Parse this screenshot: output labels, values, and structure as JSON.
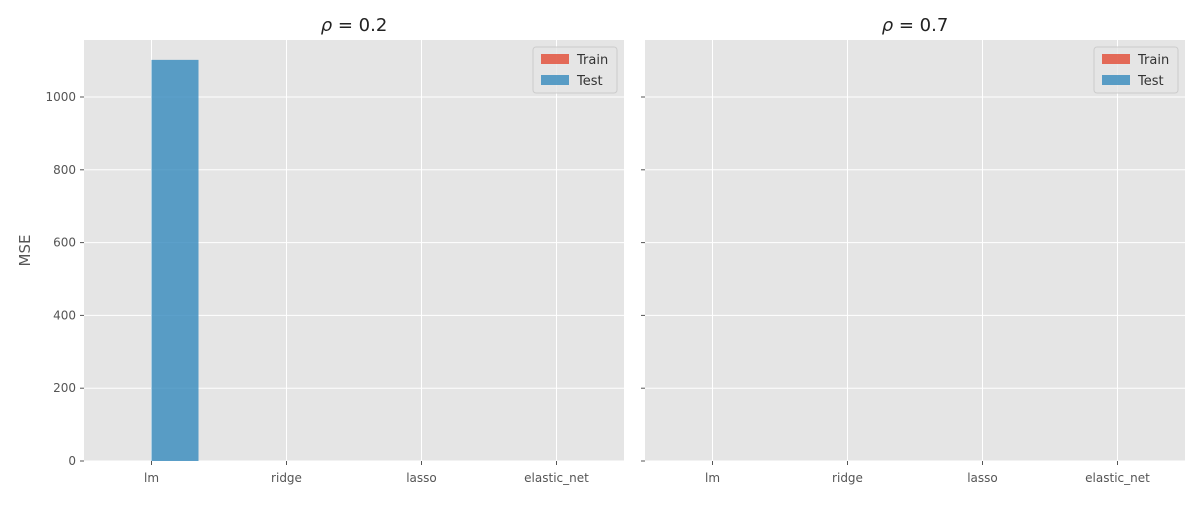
{
  "chart_data": [
    {
      "type": "bar",
      "title_prefix": "ρ",
      "title_value": " = 0.2",
      "categories": [
        "lm",
        "ridge",
        "lasso",
        "elastic_net"
      ],
      "series": [
        {
          "name": "Train",
          "values": [
            0,
            0,
            0,
            0
          ],
          "color": "#E24A33"
        },
        {
          "name": "Test",
          "values": [
            1102,
            0,
            0,
            0
          ],
          "color": "#348ABD"
        }
      ],
      "ylabel": "MSE",
      "ylim": [
        0,
        1150
      ],
      "yticks": [
        0,
        200,
        400,
        600,
        800,
        1000
      ],
      "grid": true,
      "legend": "top-right",
      "background": "#E5E5E5"
    },
    {
      "type": "bar",
      "title_prefix": "ρ",
      "title_value": " = 0.7",
      "categories": [
        "lm",
        "ridge",
        "lasso",
        "elastic_net"
      ],
      "series": [
        {
          "name": "Train",
          "values": [
            0,
            0,
            0,
            0
          ],
          "color": "#E24A33"
        },
        {
          "name": "Test",
          "values": [
            0,
            0,
            0,
            0
          ],
          "color": "#348ABD"
        }
      ],
      "ylabel": "",
      "ylim": [
        0,
        1150
      ],
      "yticks": [
        0,
        200,
        400,
        600,
        800,
        1000
      ],
      "grid": true,
      "legend": "top-right",
      "background": "#E5E5E5"
    }
  ]
}
